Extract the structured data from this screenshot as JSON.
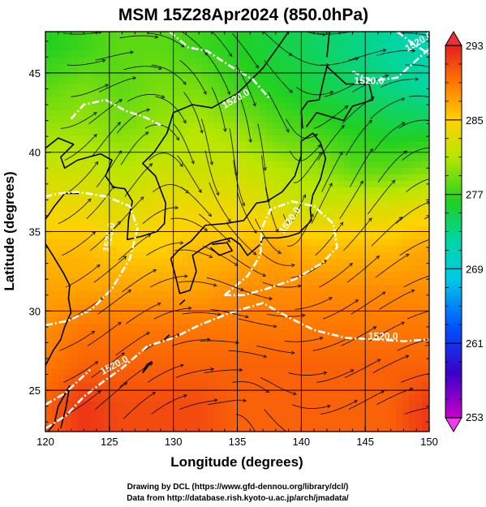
{
  "chart_data": {
    "type": "heatmap",
    "title": "MSM 15Z28Apr2024 (850.0hPa)",
    "xlabel": "Longitude (degrees)",
    "ylabel": "Latitude  (degrees)",
    "xlim": [
      120,
      150
    ],
    "ylim": [
      22.4,
      47.6
    ],
    "x_ticks": [
      "120",
      "125",
      "130",
      "135",
      "140",
      "145",
      "150"
    ],
    "y_ticks": [
      "25",
      "30",
      "35",
      "40",
      "45"
    ],
    "grid": true,
    "colorbar": {
      "min": 253,
      "max": 293,
      "tick_labels": [
        "293",
        "285",
        "277",
        "269",
        "261",
        "253"
      ],
      "extend": "both"
    },
    "temperature_field": [
      {
        "lat": 46.5,
        "values": [
          276,
          277,
          278,
          278,
          277,
          276,
          275,
          274,
          273,
          272,
          271
        ]
      },
      {
        "lat": 44.0,
        "values": [
          278,
          279,
          278,
          279,
          279,
          277,
          276,
          275,
          274,
          273,
          272
        ]
      },
      {
        "lat": 41.5,
        "values": [
          280,
          280,
          279,
          280,
          281,
          280,
          278,
          277,
          276,
          275,
          275
        ]
      },
      {
        "lat": 39.0,
        "values": [
          282,
          282,
          281,
          282,
          282,
          282,
          281,
          280,
          278,
          278,
          279
        ]
      },
      {
        "lat": 36.5,
        "values": [
          284,
          284,
          283,
          284,
          284,
          284,
          283,
          282,
          283,
          283,
          284
        ]
      },
      {
        "lat": 34.0,
        "values": [
          286,
          286,
          285,
          285,
          286,
          286,
          287,
          286,
          286,
          286,
          287
        ]
      },
      {
        "lat": 31.5,
        "values": [
          287,
          287,
          287,
          287,
          287,
          288,
          288,
          288,
          288,
          288,
          288
        ]
      },
      {
        "lat": 29.0,
        "values": [
          288,
          289,
          289,
          289,
          289,
          289,
          289,
          289,
          289,
          289,
          289
        ]
      },
      {
        "lat": 26.5,
        "values": [
          289,
          290,
          290,
          290,
          290,
          290,
          290,
          290,
          290,
          290,
          290
        ]
      },
      {
        "lat": 24.0,
        "values": [
          290,
          292,
          291,
          291,
          291,
          290,
          290,
          290,
          290,
          290,
          292
        ]
      }
    ],
    "field_lons": [
      120,
      123,
      126,
      129,
      132,
      135,
      138,
      141,
      144,
      147,
      150
    ],
    "contour_labels": [
      "1520.0",
      "1520.0",
      "1520.0",
      "1520.0",
      "1520.0",
      "1520.0",
      "1520.0"
    ]
  },
  "credits": {
    "line1": "Drawing by DCL (https://www.gfd-dennou.org/library/dcl/)",
    "line2": "Data from http://database.rish.kyoto-u.ac.jp/arch/jmadata/"
  }
}
